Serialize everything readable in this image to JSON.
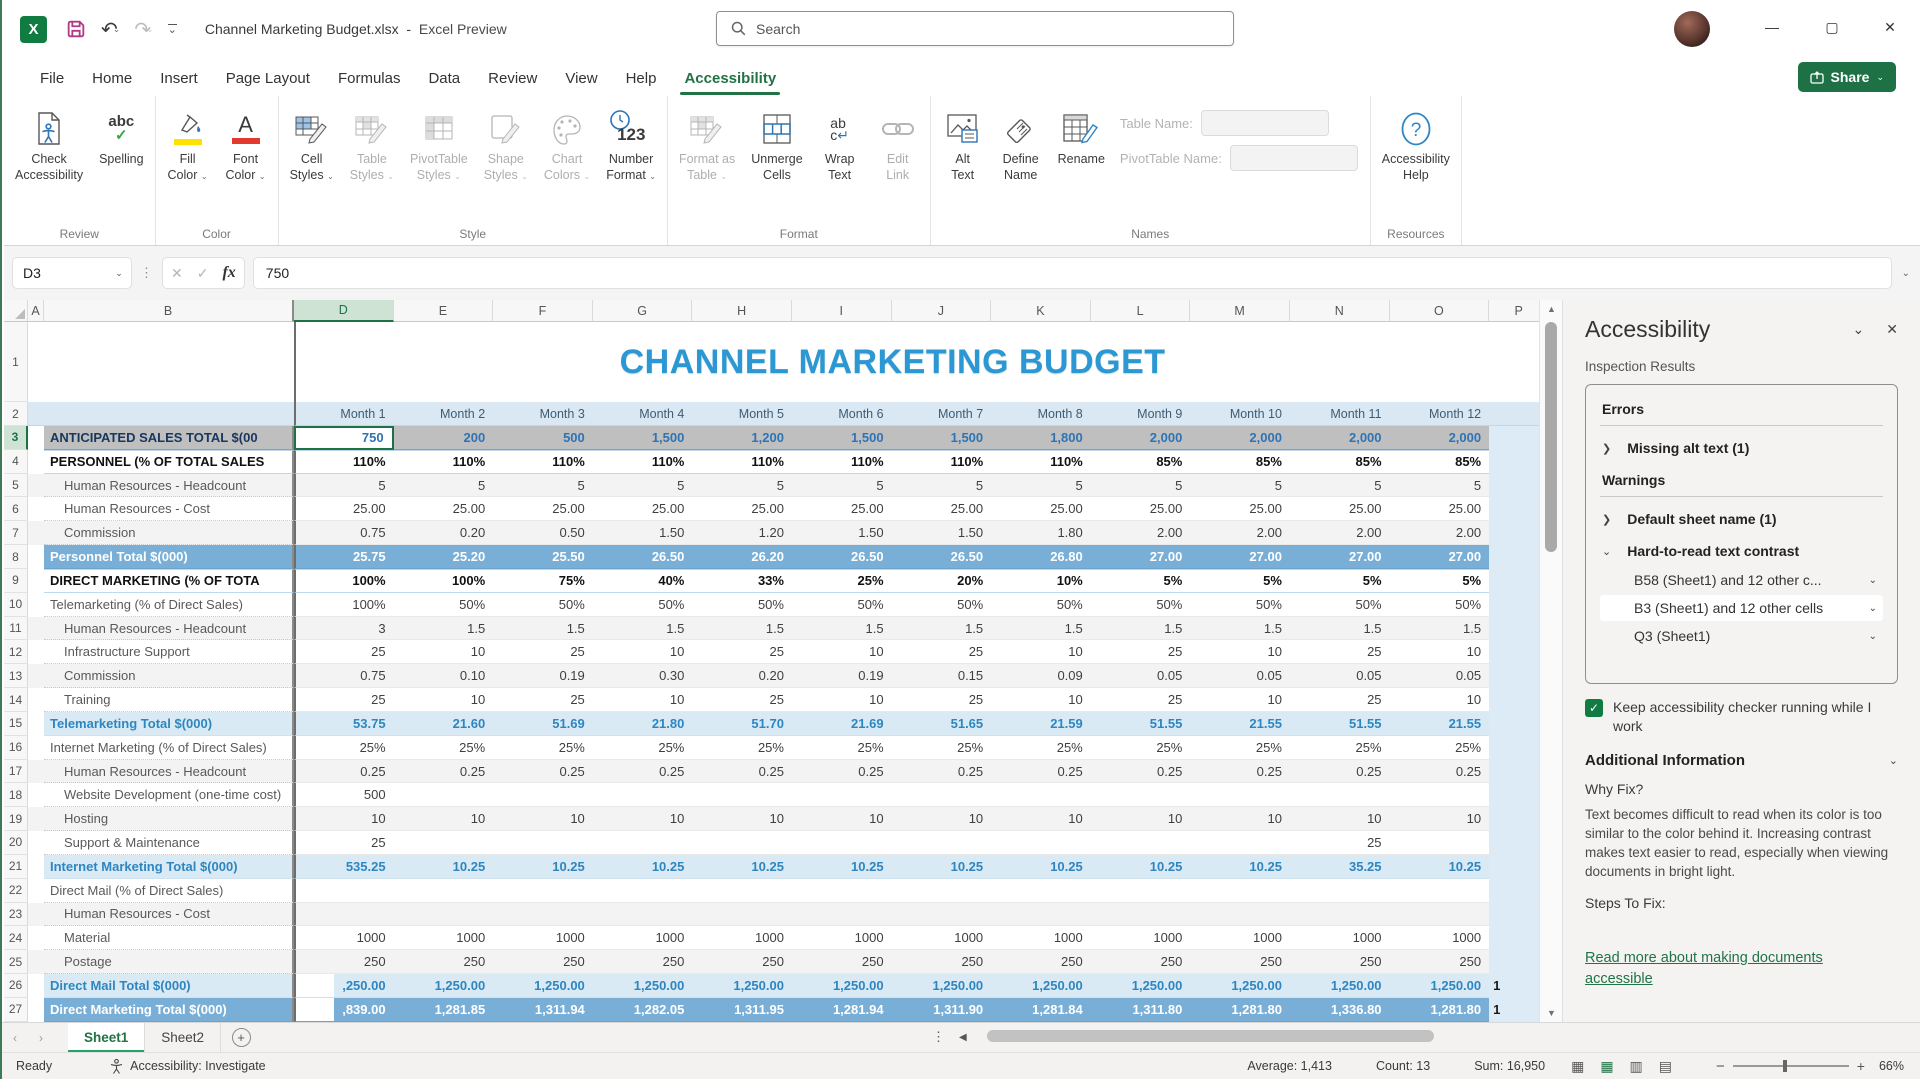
{
  "titlebar": {
    "logo": "X",
    "filename": "Channel Marketing Budget.xlsx",
    "separator": "-",
    "app": "Excel Preview",
    "search_placeholder": "Search",
    "minimize": "—",
    "maximize": "▢",
    "close": "✕"
  },
  "ribbon": {
    "tabs": [
      "File",
      "Home",
      "Insert",
      "Page Layout",
      "Formulas",
      "Data",
      "Review",
      "View",
      "Help",
      "Accessibility"
    ],
    "active_tab": "Accessibility",
    "share_label": "Share",
    "collapse_icon": "⌃",
    "groups": [
      {
        "name": "Review",
        "buttons": [
          {
            "icon": "check-accessibility",
            "lines": [
              "Check",
              "Accessibility"
            ],
            "disabled": false,
            "dd": false
          },
          {
            "icon": "spelling",
            "lines": [
              "Spelling"
            ],
            "disabled": false,
            "dd": false
          }
        ]
      },
      {
        "name": "Color",
        "buttons": [
          {
            "icon": "fill-color",
            "lines": [
              "Fill",
              "Color"
            ],
            "disabled": false,
            "dd": true
          },
          {
            "icon": "font-color",
            "lines": [
              "Font",
              "Color"
            ],
            "disabled": false,
            "dd": true
          }
        ]
      },
      {
        "name": "Style",
        "buttons": [
          {
            "icon": "cell-styles",
            "lines": [
              "Cell",
              "Styles"
            ],
            "disabled": false,
            "dd": true
          },
          {
            "icon": "table-styles",
            "lines": [
              "Table",
              "Styles"
            ],
            "disabled": true,
            "dd": true
          },
          {
            "icon": "pivottable-styles",
            "lines": [
              "PivotTable",
              "Styles"
            ],
            "disabled": true,
            "dd": true
          },
          {
            "icon": "shape-styles",
            "lines": [
              "Shape",
              "Styles"
            ],
            "disabled": true,
            "dd": true
          },
          {
            "icon": "chart-colors",
            "lines": [
              "Chart",
              "Colors"
            ],
            "disabled": true,
            "dd": true
          },
          {
            "icon": "number-format",
            "lines": [
              "Number",
              "Format"
            ],
            "disabled": false,
            "dd": true
          }
        ]
      },
      {
        "name": "Format",
        "buttons": [
          {
            "icon": "format-as-table",
            "lines": [
              "Format as",
              "Table"
            ],
            "disabled": true,
            "dd": true
          },
          {
            "icon": "unmerge-cells",
            "lines": [
              "Unmerge",
              "Cells"
            ],
            "disabled": false,
            "dd": false
          },
          {
            "icon": "wrap-text",
            "lines": [
              "Wrap",
              "Text"
            ],
            "disabled": false,
            "dd": false
          },
          {
            "icon": "edit-link",
            "lines": [
              "Edit",
              "Link"
            ],
            "disabled": true,
            "dd": false
          }
        ]
      },
      {
        "name": "Names",
        "buttons": [
          {
            "icon": "alt-text",
            "lines": [
              "Alt",
              "Text"
            ],
            "disabled": false,
            "dd": false
          },
          {
            "icon": "define-name",
            "lines": [
              "Define",
              "Name"
            ],
            "disabled": false,
            "dd": false
          },
          {
            "icon": "rename",
            "lines": [
              "Rename"
            ],
            "disabled": false,
            "dd": false
          }
        ],
        "fields": [
          {
            "label": "Table Name:"
          },
          {
            "label": "PivotTable Name:"
          }
        ]
      },
      {
        "name": "Resources",
        "buttons": [
          {
            "icon": "accessibility-help",
            "lines": [
              "Accessibility",
              "Help"
            ],
            "disabled": false,
            "dd": false
          }
        ]
      }
    ]
  },
  "formula_bar": {
    "name_box": "D3",
    "fx": "fx",
    "value": "750"
  },
  "sheet": {
    "title": "CHANNEL MARKETING BUDGET",
    "columns": [
      "A",
      "B",
      "D",
      "E",
      "F",
      "G",
      "H",
      "I",
      "J",
      "K",
      "L",
      "M",
      "N",
      "O",
      "P"
    ],
    "selected_column": "D",
    "selected_row": 3,
    "months": [
      "Month 1",
      "Month 2",
      "Month 3",
      "Month 4",
      "Month 5",
      "Month 6",
      "Month 7",
      "Month 8",
      "Month 9",
      "Month 10",
      "Month 11",
      "Month 12"
    ],
    "rows": [
      {
        "n": 3,
        "label": "ANTICIPATED SALES TOTAL $(00",
        "style": "sales",
        "sel": 0,
        "v": [
          "750",
          "200",
          "500",
          "1,500",
          "1,200",
          "1,500",
          "1,500",
          "1,800",
          "2,000",
          "2,000",
          "2,000",
          "2,000"
        ]
      },
      {
        "n": 4,
        "label": "PERSONNEL (% OF TOTAL SALES",
        "style": "section",
        "v": [
          "110%",
          "110%",
          "110%",
          "110%",
          "110%",
          "110%",
          "110%",
          "110%",
          "85%",
          "85%",
          "85%",
          "85%"
        ]
      },
      {
        "n": 5,
        "label": "Human Resources - Headcount",
        "ind": 1,
        "band": true,
        "v": [
          "5",
          "5",
          "5",
          "5",
          "5",
          "5",
          "5",
          "5",
          "5",
          "5",
          "5",
          "5"
        ]
      },
      {
        "n": 6,
        "label": "Human Resources - Cost",
        "ind": 1,
        "v": [
          "25.00",
          "25.00",
          "25.00",
          "25.00",
          "25.00",
          "25.00",
          "25.00",
          "25.00",
          "25.00",
          "25.00",
          "25.00",
          "25.00"
        ]
      },
      {
        "n": 7,
        "label": "Commission",
        "ind": 1,
        "band": true,
        "v": [
          "0.75",
          "0.20",
          "0.50",
          "1.50",
          "1.20",
          "1.50",
          "1.50",
          "1.80",
          "2.00",
          "2.00",
          "2.00",
          "2.00"
        ]
      },
      {
        "n": 8,
        "label": "Personnel Total $(000)",
        "style": "totaldark",
        "v": [
          "25.75",
          "25.20",
          "25.50",
          "26.50",
          "26.20",
          "26.50",
          "26.50",
          "26.80",
          "27.00",
          "27.00",
          "27.00",
          "27.00"
        ]
      },
      {
        "n": 9,
        "label": "DIRECT MARKETING (% OF TOTA",
        "style": "section",
        "v": [
          "100%",
          "100%",
          "75%",
          "40%",
          "33%",
          "25%",
          "20%",
          "10%",
          "5%",
          "5%",
          "5%",
          "5%"
        ]
      },
      {
        "n": 10,
        "label": "Telemarketing (% of Direct Sales)",
        "v": [
          "100%",
          "50%",
          "50%",
          "50%",
          "50%",
          "50%",
          "50%",
          "50%",
          "50%",
          "50%",
          "50%",
          "50%"
        ]
      },
      {
        "n": 11,
        "label": "Human Resources - Headcount",
        "ind": 1,
        "band": true,
        "v": [
          "3",
          "1.5",
          "1.5",
          "1.5",
          "1.5",
          "1.5",
          "1.5",
          "1.5",
          "1.5",
          "1.5",
          "1.5",
          "1.5"
        ]
      },
      {
        "n": 12,
        "label": "Infrastructure Support",
        "ind": 1,
        "v": [
          "25",
          "10",
          "25",
          "10",
          "25",
          "10",
          "25",
          "10",
          "25",
          "10",
          "25",
          "10"
        ]
      },
      {
        "n": 13,
        "label": "Commission",
        "ind": 1,
        "band": true,
        "v": [
          "0.75",
          "0.10",
          "0.19",
          "0.30",
          "0.20",
          "0.19",
          "0.15",
          "0.09",
          "0.05",
          "0.05",
          "0.05",
          "0.05"
        ]
      },
      {
        "n": 14,
        "label": "Training",
        "ind": 1,
        "v": [
          "25",
          "10",
          "25",
          "10",
          "25",
          "10",
          "25",
          "10",
          "25",
          "10",
          "25",
          "10"
        ]
      },
      {
        "n": 15,
        "label": "Telemarketing Total $(000)",
        "style": "totallight",
        "v": [
          "53.75",
          "21.60",
          "51.69",
          "21.80",
          "51.70",
          "21.69",
          "51.65",
          "21.59",
          "51.55",
          "21.55",
          "51.55",
          "21.55"
        ]
      },
      {
        "n": 16,
        "label": "Internet Marketing (% of Direct Sales)",
        "v": [
          "25%",
          "25%",
          "25%",
          "25%",
          "25%",
          "25%",
          "25%",
          "25%",
          "25%",
          "25%",
          "25%",
          "25%"
        ]
      },
      {
        "n": 17,
        "label": "Human Resources - Headcount",
        "ind": 1,
        "band": true,
        "v": [
          "0.25",
          "0.25",
          "0.25",
          "0.25",
          "0.25",
          "0.25",
          "0.25",
          "0.25",
          "0.25",
          "0.25",
          "0.25",
          "0.25"
        ]
      },
      {
        "n": 18,
        "label": "Website Development (one-time cost)",
        "ind": 1,
        "v": [
          "500",
          "",
          "",
          "",
          "",
          "",
          "",
          "",
          "",
          "",
          "",
          ""
        ]
      },
      {
        "n": 19,
        "label": "Hosting",
        "ind": 1,
        "band": true,
        "v": [
          "10",
          "10",
          "10",
          "10",
          "10",
          "10",
          "10",
          "10",
          "10",
          "10",
          "10",
          "10"
        ]
      },
      {
        "n": 20,
        "label": "Support & Maintenance",
        "ind": 1,
        "v": [
          "25",
          "",
          "",
          "",
          "",
          "",
          "",
          "",
          "",
          "",
          "25",
          ""
        ]
      },
      {
        "n": 21,
        "label": "Internet Marketing Total $(000)",
        "style": "totallight",
        "v": [
          "535.25",
          "10.25",
          "10.25",
          "10.25",
          "10.25",
          "10.25",
          "10.25",
          "10.25",
          "10.25",
          "10.25",
          "35.25",
          "10.25"
        ]
      },
      {
        "n": 22,
        "label": "Direct Mail (% of Direct Sales)",
        "v": [
          "",
          "",
          "",
          "",
          "",
          "",
          "",
          "",
          "",
          "",
          "",
          ""
        ]
      },
      {
        "n": 23,
        "label": "Human Resources - Cost",
        "ind": 1,
        "band": true,
        "v": [
          "",
          "",
          "",
          "",
          "",
          "",
          "",
          "",
          "",
          "",
          "",
          ""
        ]
      },
      {
        "n": 24,
        "label": "Material",
        "ind": 1,
        "v": [
          "1000",
          "1000",
          "1000",
          "1000",
          "1000",
          "1000",
          "1000",
          "1000",
          "1000",
          "1000",
          "1000",
          "1000"
        ]
      },
      {
        "n": 25,
        "label": "Postage",
        "ind": 1,
        "band": true,
        "v": [
          "250",
          "250",
          "250",
          "250",
          "250",
          "250",
          "250",
          "250",
          "250",
          "250",
          "250",
          "250"
        ]
      },
      {
        "n": 26,
        "label": "Direct Mail Total $(000)",
        "style": "totallight",
        "inset": true,
        "p": "1",
        "v": [
          ",250.00",
          "1,250.00",
          "1,250.00",
          "1,250.00",
          "1,250.00",
          "1,250.00",
          "1,250.00",
          "1,250.00",
          "1,250.00",
          "1,250.00",
          "1,250.00",
          "1,250.00"
        ]
      },
      {
        "n": 27,
        "label": "Direct Marketing Total $(000)",
        "style": "totaldark",
        "inset": true,
        "p": "1",
        "v": [
          ",839.00",
          "1,281.85",
          "1,311.94",
          "1,282.05",
          "1,311.95",
          "1,281.94",
          "1,311.90",
          "1,281.84",
          "1,311.80",
          "1,281.80",
          "1,336.80",
          "1,281.80"
        ]
      }
    ]
  },
  "panel": {
    "title": "Accessibility",
    "section": "Inspection Results",
    "errors_header": "Errors",
    "error_items": [
      "Missing alt text (1)"
    ],
    "warnings_header": "Warnings",
    "warning_items": [
      "Default sheet name (1)"
    ],
    "contrast_header": "Hard-to-read text contrast",
    "contrast_children": [
      "B58 (Sheet1) and 12 other c...",
      "B3 (Sheet1) and 12 other cells",
      "Q3 (Sheet1)"
    ],
    "contrast_selected": 1,
    "checkbox_label": "Keep accessibility checker running while I work",
    "additional_header": "Additional Information",
    "why_fix": "Why Fix?",
    "why_text": "Text becomes difficult to read when its color is too similar to the color behind it. Increasing contrast makes text easier to read, especially when viewing documents in bright light.",
    "steps": "Steps To Fix:",
    "link": "Read more about making documents accessible"
  },
  "tabbar": {
    "sheets": [
      "Sheet1",
      "Sheet2"
    ],
    "active_sheet": "Sheet1",
    "add": "+"
  },
  "statusbar": {
    "ready": "Ready",
    "accessibility": "Accessibility: Investigate",
    "average": "Average: 1,413",
    "count": "Count: 13",
    "sum": "Sum: 16,950",
    "zoom": "66%"
  },
  "colors": {
    "accent_green": "#217346",
    "title_blue": "#2B97D3",
    "sales_grey": "#BFBFBF",
    "total_light": "#DAEAF5",
    "total_dark": "#79AFD7",
    "month_band": "#D9E8F2",
    "p_column": "#DCEBF5",
    "value_blue": "#2E74B5"
  }
}
